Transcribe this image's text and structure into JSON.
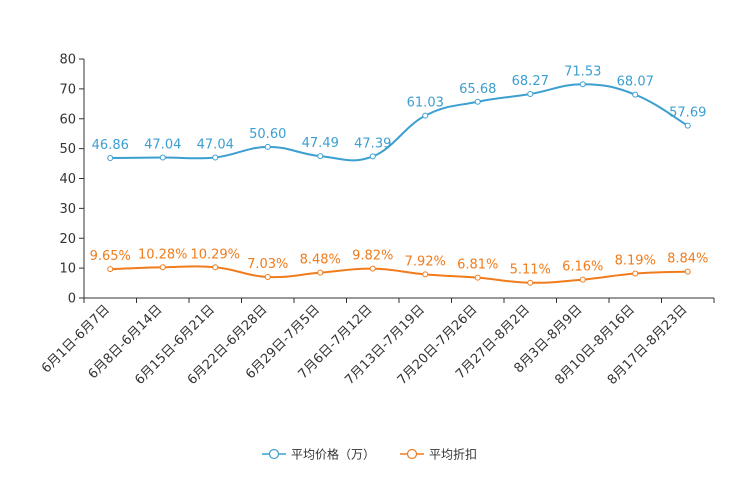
{
  "chart_data": {
    "type": "line",
    "title": "",
    "xlabel": "",
    "ylabel": "",
    "ylim": [
      0,
      80
    ],
    "yticks": [
      0,
      10,
      20,
      30,
      40,
      50,
      60,
      70,
      80
    ],
    "grid": false,
    "legend_position": "bottom",
    "categories": [
      "6月1日-6月7日",
      "6月8日-6月14日",
      "6月15日-6月21日",
      "6月22日-6月28日",
      "6月29日-7月5日",
      "7月6日-7月12日",
      "7月13日-7月19日",
      "7月20日-7月26日",
      "7月27日-8月2日",
      "8月3日-8月9日",
      "8月10日-8月16日",
      "8月17日-8月23日"
    ],
    "series": [
      {
        "name": "平均价格（万）",
        "color": "#3c9fd1",
        "values": [
          46.86,
          47.04,
          47.04,
          50.6,
          47.49,
          47.39,
          61.03,
          65.68,
          68.27,
          71.53,
          68.07,
          57.69
        ],
        "labels": [
          "46.86",
          "47.04",
          "47.04",
          "50.60",
          "47.49",
          "47.39",
          "61.03",
          "65.68",
          "68.27",
          "71.53",
          "68.07",
          "57.69"
        ]
      },
      {
        "name": "平均折扣",
        "color": "#f07c1c",
        "values": [
          9.65,
          10.28,
          10.29,
          7.03,
          8.48,
          9.82,
          7.92,
          6.81,
          5.11,
          6.16,
          8.19,
          8.84
        ],
        "labels": [
          "9.65%",
          "10.28%",
          "10.29%",
          "7.03%",
          "8.48%",
          "9.82%",
          "7.92%",
          "6.81%",
          "5.11%",
          "6.16%",
          "8.19%",
          "8.84%"
        ]
      }
    ]
  }
}
